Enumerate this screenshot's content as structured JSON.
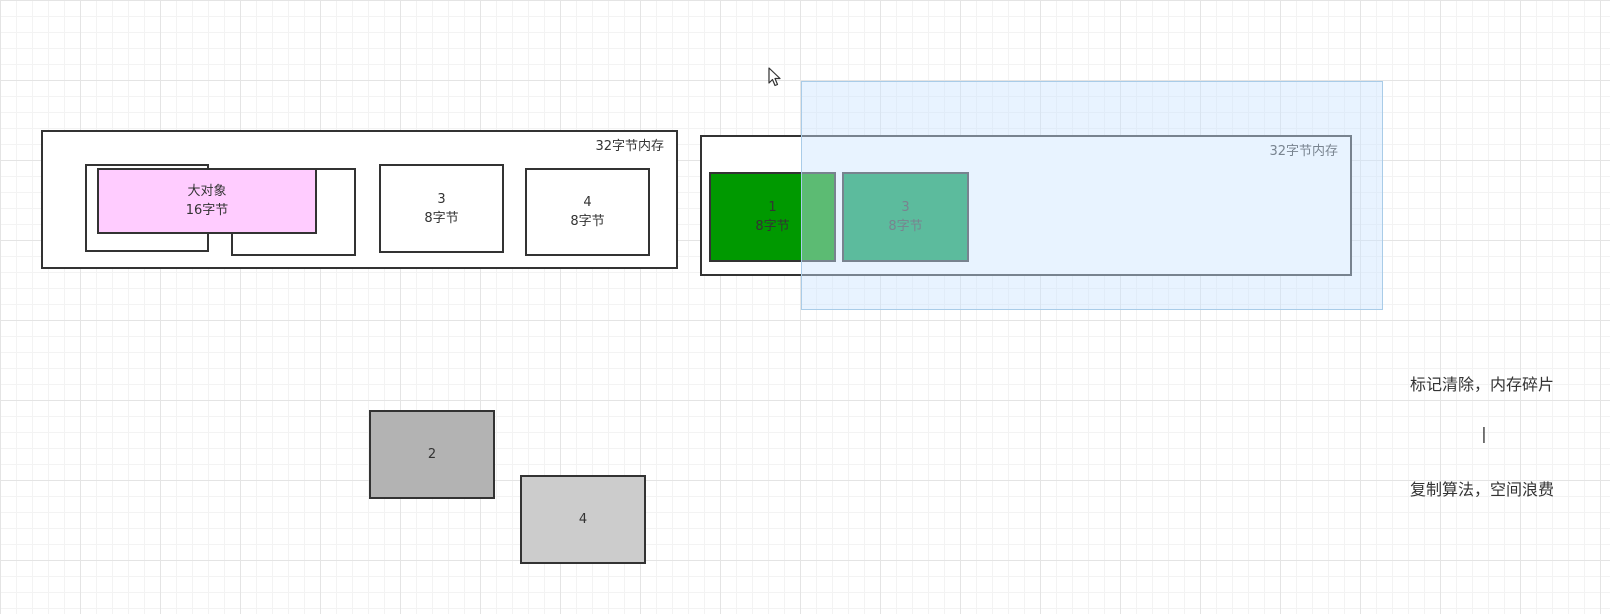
{
  "left_memory": {
    "label": "32字节内存",
    "blocks": [
      {
        "id": "large",
        "title": "大对象",
        "size": "16字节",
        "fill": "#ffccff"
      },
      {
        "id": "3",
        "title": "3",
        "size": "8字节"
      },
      {
        "id": "4",
        "title": "4",
        "size": "8字节"
      }
    ]
  },
  "right_memory": {
    "label": "32字节内存",
    "blocks": [
      {
        "id": "1",
        "title": "1",
        "size": "8字节",
        "fill": "#009900"
      },
      {
        "id": "3",
        "title": "3",
        "size": "8字节",
        "fill": "#00994d"
      }
    ],
    "selection_fill": "#dae8fc"
  },
  "loose_blocks": [
    {
      "id": "2",
      "title": "2",
      "fill": "#b3b3b3"
    },
    {
      "id": "4",
      "title": "4",
      "fill": "#cccccc"
    }
  ],
  "notes": {
    "line1": "标记清除，内存碎片",
    "separator": "|",
    "line2": "复制算法，空间浪费"
  }
}
